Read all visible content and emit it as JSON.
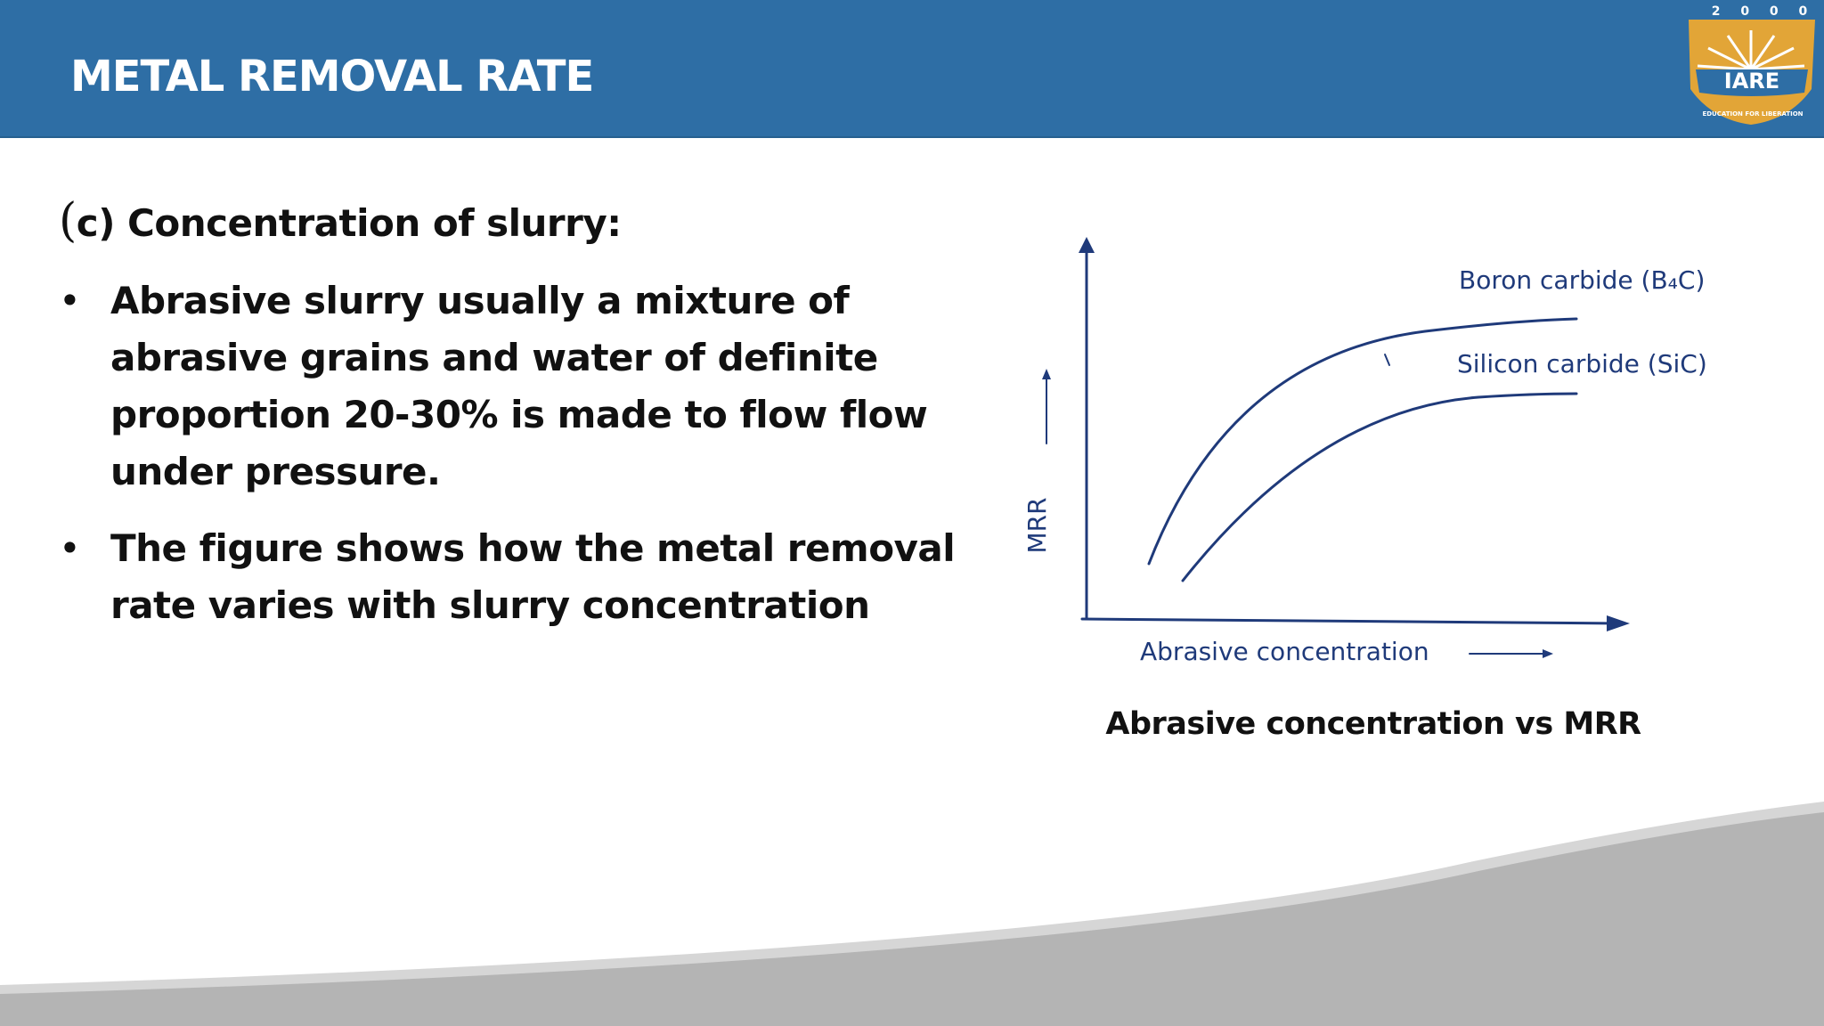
{
  "header": {
    "title": "METAL REMOVAL RATE",
    "logo": {
      "top_text": "2 0 0 0",
      "name": "IARE",
      "motto": "EDUCATION FOR LIBERATION",
      "color_gold": "#e2a537",
      "color_blue": "#2e6ea5"
    }
  },
  "content": {
    "heading_paren": "(",
    "heading_text": "c) Concentration of slurry:",
    "bullets": [
      {
        "symbol": "•",
        "text": "Abrasive slurry usually a mixture of abrasive grains and water of  definite proportion 20-30% is made to flow flow under pressure."
      },
      {
        "symbol": "•",
        "text": "The figure shows how the metal removal rate varies with slurry  concentration"
      }
    ]
  },
  "figure": {
    "y_label": "MRR",
    "x_label": "Abrasive concentration",
    "curve_boron": "Boron carbide (B₄C)",
    "curve_silicon": "Silicon carbide (SiC)",
    "line_color": "#1f3a7a",
    "label_color": "#1f3a7a",
    "caption": "Abrasive concentration vs MRR"
  },
  "footer": {
    "band_color": "#b4b4b4"
  }
}
